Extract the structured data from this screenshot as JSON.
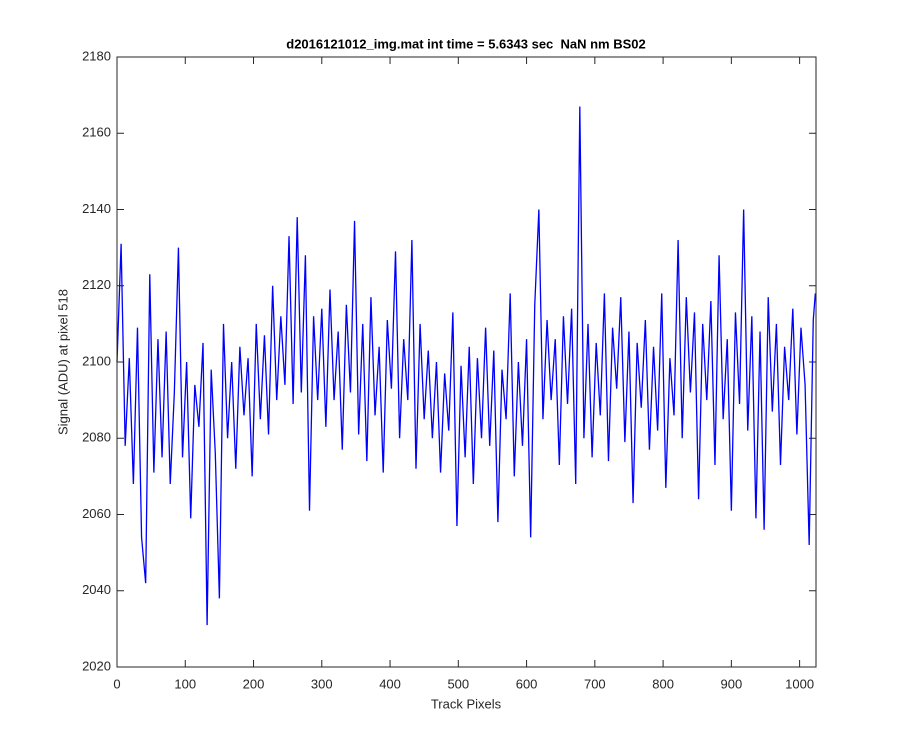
{
  "chart_data": {
    "type": "line",
    "title": "d2016121012_img.mat int time = 5.6343 sec  NaN nm BS02",
    "x_label": "Track Pixels",
    "y_label": "Signal (ADU) at pixel 518",
    "xlim": [
      0,
      1024
    ],
    "ylim": [
      2020,
      2180
    ],
    "xticks": [
      0,
      100,
      200,
      300,
      400,
      500,
      600,
      700,
      800,
      900,
      1000
    ],
    "yticks": [
      2020,
      2040,
      2060,
      2080,
      2100,
      2120,
      2140,
      2160,
      2180
    ],
    "x": [
      0,
      6,
      12,
      18,
      24,
      30,
      36,
      42,
      48,
      54,
      60,
      66,
      72,
      78,
      84,
      90,
      96,
      102,
      108,
      114,
      120,
      126,
      132,
      138,
      144,
      150,
      156,
      162,
      168,
      174,
      180,
      186,
      192,
      198,
      204,
      210,
      216,
      222,
      228,
      234,
      240,
      246,
      252,
      258,
      264,
      270,
      276,
      282,
      288,
      294,
      300,
      306,
      312,
      318,
      324,
      330,
      336,
      342,
      348,
      354,
      360,
      366,
      372,
      378,
      384,
      390,
      396,
      402,
      408,
      414,
      420,
      426,
      432,
      438,
      444,
      450,
      456,
      462,
      468,
      474,
      480,
      486,
      492,
      498,
      504,
      510,
      516,
      522,
      528,
      534,
      540,
      546,
      552,
      558,
      564,
      570,
      576,
      582,
      588,
      594,
      600,
      606,
      612,
      618,
      624,
      630,
      636,
      642,
      648,
      654,
      660,
      666,
      672,
      678,
      684,
      690,
      696,
      702,
      708,
      714,
      720,
      726,
      732,
      738,
      744,
      750,
      756,
      762,
      768,
      774,
      780,
      786,
      792,
      798,
      804,
      810,
      816,
      822,
      828,
      834,
      840,
      846,
      852,
      858,
      864,
      870,
      876,
      882,
      888,
      894,
      900,
      906,
      912,
      918,
      924,
      930,
      936,
      942,
      948,
      954,
      960,
      966,
      972,
      978,
      984,
      990,
      996,
      1002,
      1008,
      1014,
      1020,
      1023
    ],
    "series": [
      {
        "color": "#0000ff",
        "values": [
          2100,
          2131,
          2078,
          2101,
          2068,
          2109,
          2054,
          2042,
          2123,
          2071,
          2106,
          2075,
          2108,
          2068,
          2092,
          2130,
          2075,
          2100,
          2059,
          2094,
          2083,
          2105,
          2031,
          2098,
          2076,
          2038,
          2110,
          2080,
          2100,
          2072,
          2104,
          2086,
          2101,
          2070,
          2110,
          2085,
          2107,
          2081,
          2120,
          2090,
          2112,
          2094,
          2133,
          2089,
          2138,
          2092,
          2128,
          2061,
          2112,
          2090,
          2114,
          2083,
          2119,
          2090,
          2108,
          2077,
          2115,
          2092,
          2137,
          2081,
          2110,
          2074,
          2117,
          2086,
          2104,
          2071,
          2111,
          2093,
          2129,
          2080,
          2106,
          2090,
          2132,
          2072,
          2110,
          2085,
          2103,
          2080,
          2100,
          2071,
          2097,
          2082,
          2113,
          2057,
          2099,
          2075,
          2104,
          2068,
          2101,
          2080,
          2109,
          2078,
          2103,
          2058,
          2098,
          2085,
          2118,
          2070,
          2100,
          2078,
          2106,
          2054,
          2115,
          2140,
          2085,
          2111,
          2090,
          2106,
          2073,
          2112,
          2089,
          2114,
          2068,
          2167,
          2080,
          2110,
          2075,
          2105,
          2086,
          2118,
          2074,
          2109,
          2093,
          2117,
          2079,
          2108,
          2063,
          2105,
          2088,
          2111,
          2077,
          2104,
          2082,
          2118,
          2067,
          2101,
          2086,
          2132,
          2080,
          2117,
          2092,
          2113,
          2064,
          2110,
          2090,
          2116,
          2073,
          2128,
          2085,
          2106,
          2061,
          2113,
          2089,
          2140,
          2082,
          2112,
          2059,
          2108,
          2056,
          2117,
          2087,
          2110,
          2073,
          2104,
          2090,
          2114,
          2081,
          2109,
          2094,
          2052,
          2111,
          2118
        ]
      }
    ]
  }
}
